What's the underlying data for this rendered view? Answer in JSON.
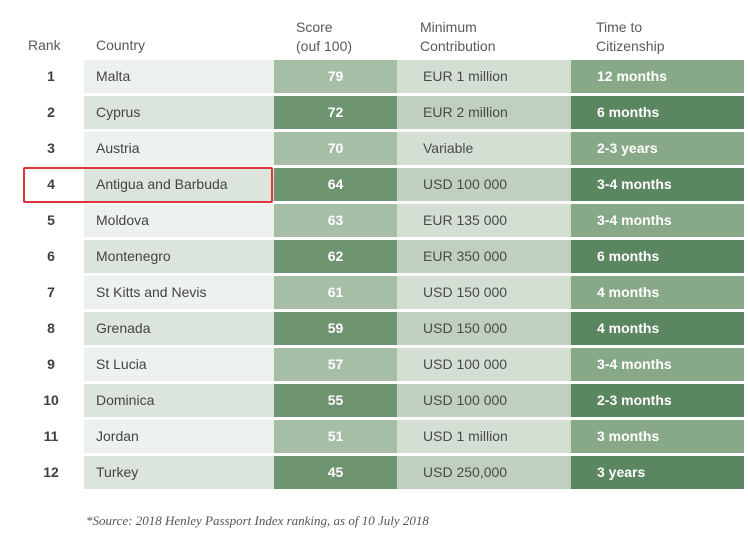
{
  "headers": {
    "rank": "Rank",
    "country": "Country",
    "score_line1": "Score",
    "score_line2": "(ouf 100)",
    "min_line1": "Minimum",
    "min_line2": "Contribution",
    "time_line1": "Time to",
    "time_line2": "Citizenship"
  },
  "rows": [
    {
      "rank": "1",
      "country": "Malta",
      "score": "79",
      "min": "EUR 1 million",
      "time": "12 months"
    },
    {
      "rank": "2",
      "country": "Cyprus",
      "score": "72",
      "min": "EUR 2  million",
      "time": "6 months"
    },
    {
      "rank": "3",
      "country": "Austria",
      "score": "70",
      "min": "Variable",
      "time": "2-3 years"
    },
    {
      "rank": "4",
      "country": "Antigua and Barbuda",
      "score": "64",
      "min": "USD 100 000",
      "time": "3-4 months"
    },
    {
      "rank": "5",
      "country": "Moldova",
      "score": "63",
      "min": "EUR 135 000",
      "time": "3-4 months"
    },
    {
      "rank": "6",
      "country": "Montenegro",
      "score": "62",
      "min": "EUR 350 000",
      "time": "6 months"
    },
    {
      "rank": "7",
      "country": "St Kitts and Nevis",
      "score": "61",
      "min": "USD 150 000",
      "time": "4 months"
    },
    {
      "rank": "8",
      "country": "Grenada",
      "score": "59",
      "min": "USD 150 000",
      "time": "4 months"
    },
    {
      "rank": "9",
      "country": "St Lucia",
      "score": "57",
      "min": "USD 100 000",
      "time": "3-4 months"
    },
    {
      "rank": "10",
      "country": "Dominica",
      "score": "55",
      "min": "USD 100 000",
      "time": "2-3 months"
    },
    {
      "rank": "11",
      "country": "Jordan",
      "score": "51",
      "min": "USD 1 million",
      "time": "3 months"
    },
    {
      "rank": "12",
      "country": "Turkey",
      "score": "45",
      "min": "USD 250,000",
      "time": "3 years"
    }
  ],
  "highlighted_rank": "4",
  "highlight_color": "#d9373a",
  "source": "*Source: 2018 Henley Passport Index ranking, as of 10 July 2018"
}
